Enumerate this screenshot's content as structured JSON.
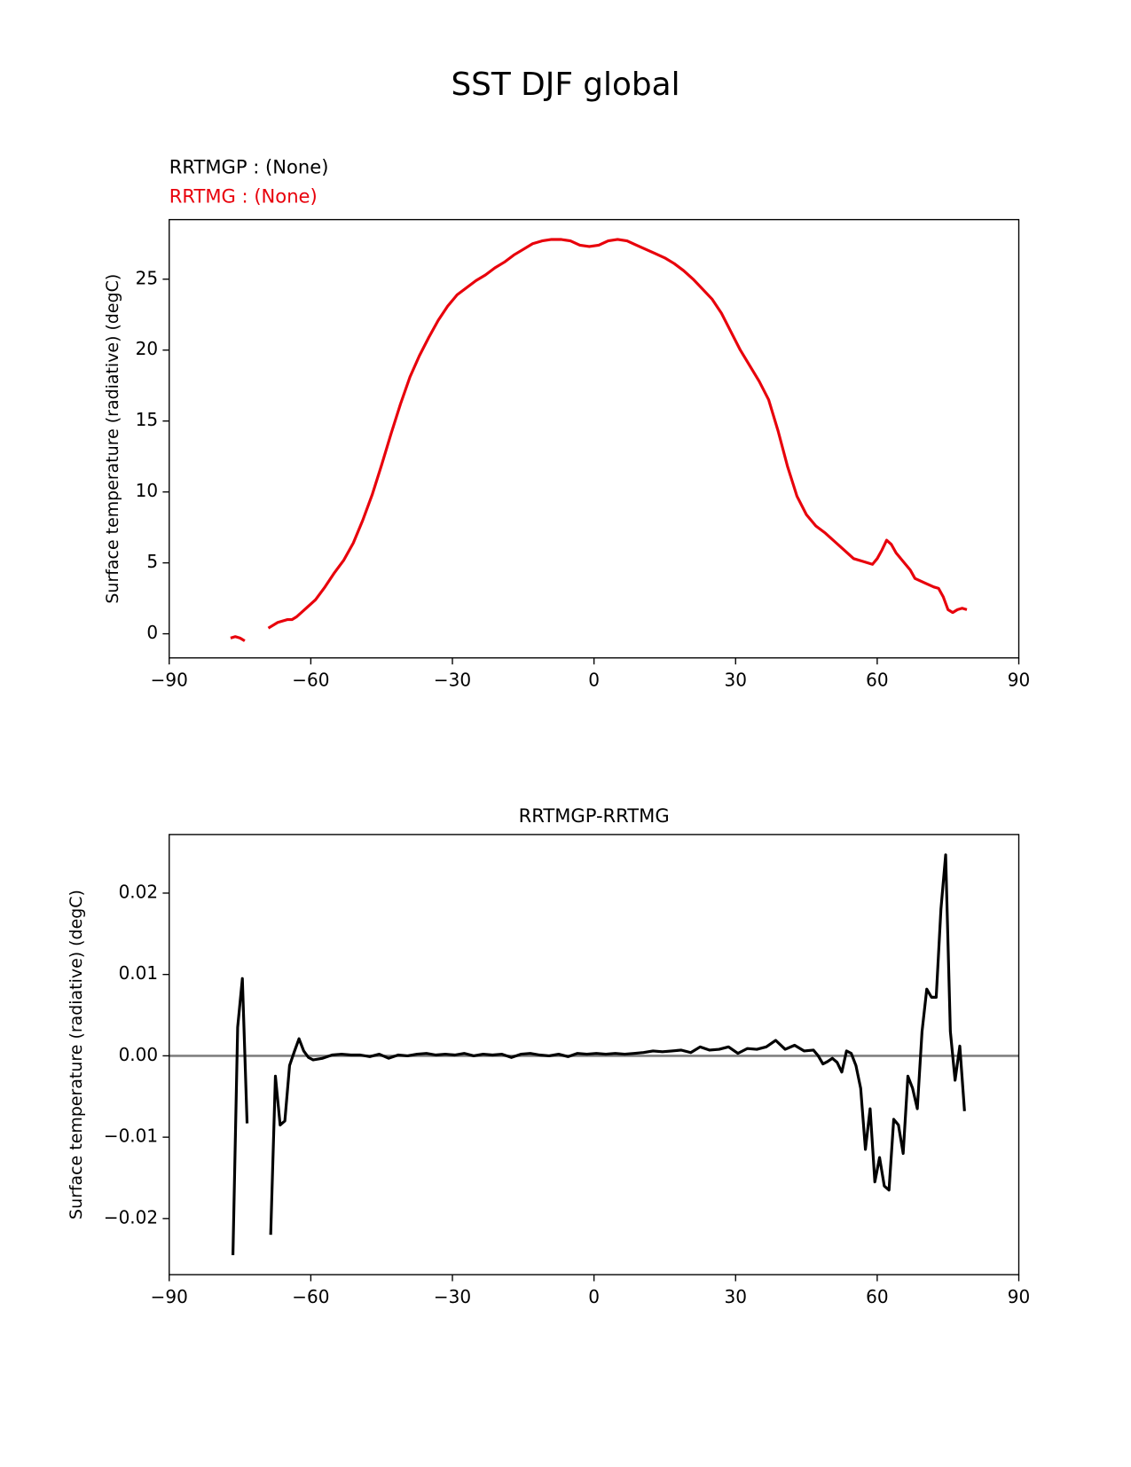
{
  "title": "SST DJF global",
  "chart_data": [
    {
      "type": "line",
      "annotations": [
        {
          "text": "RRTMGP :   (None)",
          "color": "#000000"
        },
        {
          "text": "RRTMG :  (None)",
          "color": "#e8000b"
        }
      ],
      "y_label": "Surface temperature (radiative) (degC)",
      "color": "#e8000b",
      "x": [
        -77,
        -76,
        -75,
        -74,
        -71,
        -69,
        -67,
        -65,
        -64,
        -63,
        -61,
        -59,
        -57,
        -55,
        -53,
        -51,
        -49,
        -47,
        -45,
        -43,
        -41,
        -39,
        -37,
        -35,
        -33,
        -31,
        -29,
        -27,
        -25,
        -23,
        -21,
        -19,
        -17,
        -15,
        -13,
        -11,
        -9,
        -7,
        -5,
        -3,
        -1,
        1,
        3,
        5,
        7,
        9,
        11,
        13,
        15,
        17,
        19,
        21,
        23,
        25,
        27,
        29,
        31,
        33,
        35,
        37,
        39,
        41,
        43,
        45,
        47,
        49,
        51,
        53,
        55,
        57,
        59,
        60,
        61,
        62,
        63,
        64,
        66,
        67,
        68,
        70,
        72,
        73,
        74,
        75,
        76,
        77,
        78,
        79
      ],
      "values": [
        -0.3,
        -0.2,
        -0.3,
        -0.5,
        null,
        0.4,
        0.8,
        1.0,
        1.0,
        1.2,
        1.8,
        2.4,
        3.3,
        4.3,
        5.2,
        6.4,
        8.0,
        9.8,
        11.9,
        14.1,
        16.2,
        18.1,
        19.6,
        20.9,
        22.1,
        23.1,
        23.9,
        24.4,
        24.9,
        25.3,
        25.8,
        26.2,
        26.7,
        27.1,
        27.5,
        27.7,
        27.8,
        27.8,
        27.7,
        27.4,
        27.3,
        27.4,
        27.7,
        27.8,
        27.7,
        27.4,
        27.1,
        26.8,
        26.5,
        26.1,
        25.6,
        25.0,
        24.3,
        23.6,
        22.6,
        21.3,
        20.0,
        18.9,
        17.8,
        16.5,
        14.3,
        11.8,
        9.7,
        8.4,
        7.6,
        7.1,
        6.5,
        5.9,
        5.3,
        5.1,
        4.9,
        5.3,
        5.9,
        6.6,
        6.3,
        5.7,
        4.9,
        4.5,
        3.9,
        3.6,
        3.3,
        3.2,
        2.6,
        1.7,
        1.5,
        1.7,
        1.8,
        1.7
      ],
      "xlim": [
        -90,
        90
      ],
      "xticks": [
        {
          "value": -90,
          "label": "−90"
        },
        {
          "value": -60,
          "label": "−60"
        },
        {
          "value": -30,
          "label": "−30"
        },
        0,
        30,
        60,
        90
      ],
      "ylim": [
        -1.7,
        29.2
      ],
      "yticks": [
        0,
        5,
        10,
        15,
        20,
        25
      ]
    },
    {
      "type": "line",
      "title": "RRTMGP-RRTMG",
      "y_label": "Surface temperature (radiative) (degC)",
      "color": "#000000",
      "hline": 0,
      "hline_color": "#808080",
      "x": [
        -76.5,
        -75.5,
        -74.5,
        -73.5,
        -71,
        -68.5,
        -67.5,
        -66.5,
        -65.5,
        -64.5,
        -63.5,
        -62.5,
        -61.5,
        -60.5,
        -59.5,
        -57.5,
        -55.5,
        -53.5,
        -51.5,
        -49.5,
        -47.5,
        -45.5,
        -43.5,
        -41.5,
        -39.5,
        -37.5,
        -35.5,
        -33.5,
        -31.5,
        -29.5,
        -27.5,
        -25.5,
        -23.5,
        -21.5,
        -19.5,
        -17.5,
        -15.5,
        -13.5,
        -11.5,
        -9.5,
        -7.5,
        -5.5,
        -3.5,
        -1.5,
        0.5,
        2.5,
        4.5,
        6.5,
        8.5,
        10.5,
        12.5,
        14.5,
        16.5,
        18.5,
        20.5,
        22.5,
        24.5,
        26.5,
        28.5,
        30.5,
        32.5,
        34.5,
        36.5,
        38.5,
        40.5,
        42.5,
        44.5,
        46.5,
        47.5,
        48.5,
        49.5,
        50.5,
        51.5,
        52.5,
        53.5,
        54.5,
        55.5,
        56.5,
        57.5,
        58.5,
        59.5,
        60.5,
        61.5,
        62.5,
        63.5,
        64.5,
        65.5,
        66.5,
        67.5,
        68.5,
        69.5,
        70.5,
        71.5,
        72.5,
        73.5,
        74.5,
        75.5,
        76.5,
        77.5,
        78.5
      ],
      "values": [
        -0.0245,
        0.0035,
        0.0095,
        -0.0083,
        null,
        -0.022,
        -0.0025,
        -0.0085,
        -0.008,
        -0.0012,
        0.0005,
        0.0021,
        0.0006,
        -0.0002,
        -0.0005,
        -0.0003,
        0.0001,
        0.0002,
        0.0001,
        0.0001,
        -0.0001,
        0.0002,
        -0.0003,
        0.0001,
        0.0,
        0.0002,
        0.0003,
        0.0001,
        0.0002,
        0.0001,
        0.0003,
        0.0,
        0.0002,
        0.0001,
        0.0002,
        -0.0002,
        0.0002,
        0.0003,
        0.0001,
        0.0,
        0.0002,
        -0.0001,
        0.0003,
        0.0002,
        0.0003,
        0.0002,
        0.0003,
        0.0002,
        0.0003,
        0.0004,
        0.0006,
        0.0005,
        0.0006,
        0.0007,
        0.0004,
        0.0011,
        0.0007,
        0.0008,
        0.0011,
        0.0003,
        0.0009,
        0.0008,
        0.0011,
        0.0019,
        0.0008,
        0.0013,
        0.0006,
        0.0007,
        0.0,
        -0.001,
        -0.0007,
        -0.0003,
        -0.0008,
        -0.002,
        0.0006,
        0.0003,
        -0.0012,
        -0.004,
        -0.0115,
        -0.0065,
        -0.0155,
        -0.0125,
        -0.016,
        -0.0165,
        -0.0078,
        -0.0085,
        -0.012,
        -0.0025,
        -0.004,
        -0.0065,
        0.003,
        0.0082,
        0.0072,
        0.0072,
        0.018,
        0.0247,
        0.003,
        -0.003,
        0.0012,
        -0.0068
      ],
      "xlim": [
        -90,
        90
      ],
      "xticks": [
        {
          "value": -90,
          "label": "−90"
        },
        {
          "value": -60,
          "label": "−60"
        },
        {
          "value": -30,
          "label": "−30"
        },
        0,
        30,
        60,
        90
      ],
      "ylim": [
        -0.0269,
        0.0272
      ],
      "yticks": [
        {
          "value": -0.02,
          "label": "−0.02"
        },
        {
          "value": -0.01,
          "label": "−0.01"
        },
        {
          "value": 0,
          "label": "0.00"
        },
        {
          "value": 0.01,
          "label": "0.01"
        },
        {
          "value": 0.02,
          "label": "0.02"
        }
      ]
    }
  ]
}
